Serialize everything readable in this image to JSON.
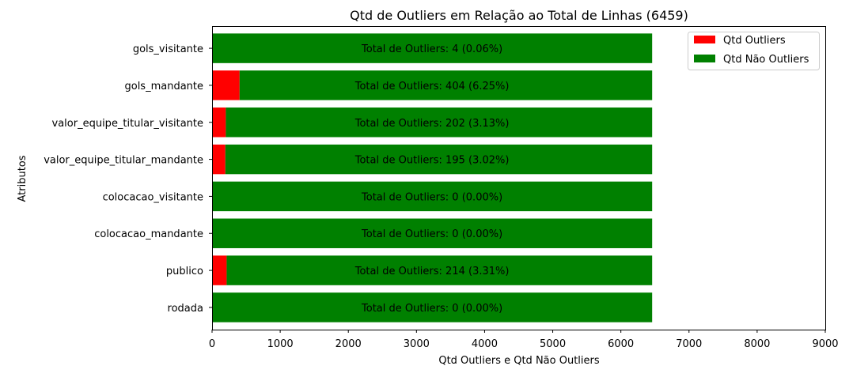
{
  "chart_data": {
    "type": "bar",
    "orientation": "horizontal",
    "stacked": true,
    "title": "Qtd de Outliers em Relação ao Total de Linhas (6459)",
    "xlabel": "Qtd Outliers e Qtd Não Outliers",
    "ylabel": "Atributos",
    "xlim": [
      0,
      9000
    ],
    "xticks": [
      "0",
      "1000",
      "2000",
      "3000",
      "4000",
      "5000",
      "6000",
      "7000",
      "8000",
      "9000"
    ],
    "categories": [
      "rodada",
      "publico",
      "colocacao_mandante",
      "colocacao_visitante",
      "valor_equipe_titular_mandante",
      "valor_equipe_titular_visitante",
      "gols_mandante",
      "gols_visitante"
    ],
    "series": [
      {
        "name": "Qtd Outliers",
        "color": "#ff0000",
        "values": [
          0,
          214,
          0,
          0,
          195,
          202,
          404,
          4
        ]
      },
      {
        "name": "Qtd Não Outliers",
        "color": "#008000",
        "values": [
          6459,
          6245,
          6459,
          6459,
          6264,
          6257,
          6055,
          6455
        ]
      }
    ],
    "annotations": [
      "Total de Outliers: 0 (0.00%)",
      "Total de Outliers: 214 (3.31%)",
      "Total de Outliers: 0 (0.00%)",
      "Total de Outliers: 0 (0.00%)",
      "Total de Outliers: 195 (3.02%)",
      "Total de Outliers: 202 (3.13%)",
      "Total de Outliers: 404 (6.25%)",
      "Total de Outliers: 4 (0.06%)"
    ],
    "legend_position": "top-right"
  }
}
